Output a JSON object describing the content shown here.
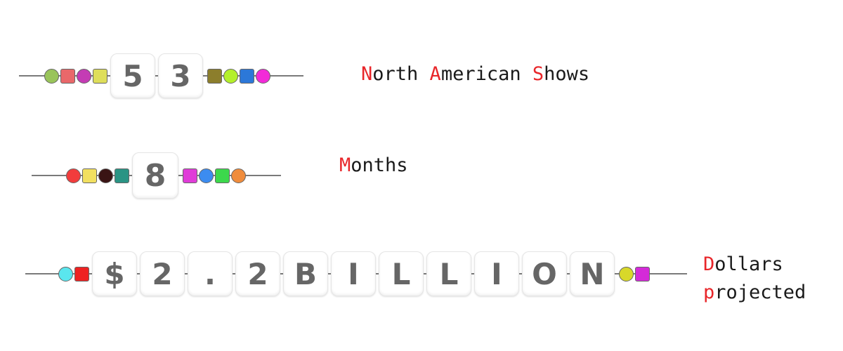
{
  "rows": [
    {
      "tiles": [
        "5",
        "3"
      ],
      "beads_left": [
        {
          "shape": "circle",
          "color": "#99c45a"
        },
        {
          "shape": "square",
          "color": "#e9686a"
        },
        {
          "shape": "circle",
          "color": "#c43cb4"
        },
        {
          "shape": "square",
          "color": "#dede5a"
        }
      ],
      "beads_right": [
        {
          "shape": "square",
          "color": "#8c7e2c"
        },
        {
          "shape": "circle",
          "color": "#b4f02a"
        },
        {
          "shape": "square",
          "color": "#2c78d8"
        },
        {
          "shape": "circle",
          "color": "#f22ad8"
        }
      ],
      "label_lines": [
        [
          {
            "text": "N",
            "highlight": true
          },
          {
            "text": "orth ",
            "highlight": false
          },
          {
            "text": "A",
            "highlight": true
          },
          {
            "text": "merican ",
            "highlight": false
          },
          {
            "text": "S",
            "highlight": true
          },
          {
            "text": "hows",
            "highlight": false
          }
        ]
      ]
    },
    {
      "tiles": [
        "8"
      ],
      "beads_left": [
        {
          "shape": "circle",
          "color": "#f23c3c"
        },
        {
          "shape": "square",
          "color": "#f2e060"
        },
        {
          "shape": "circle",
          "color": "#3a1414"
        },
        {
          "shape": "square",
          "color": "#2a9484"
        }
      ],
      "beads_right": [
        {
          "shape": "square",
          "color": "#e03cd8"
        },
        {
          "shape": "circle",
          "color": "#3c8cf0"
        },
        {
          "shape": "square",
          "color": "#3cd84c"
        },
        {
          "shape": "circle",
          "color": "#f08c3c"
        }
      ],
      "label_lines": [
        [
          {
            "text": "M",
            "highlight": true
          },
          {
            "text": "onths",
            "highlight": false
          }
        ]
      ]
    },
    {
      "tiles": [
        "$",
        "2",
        ".",
        "2",
        "B",
        "I",
        "L",
        "L",
        "I",
        "O",
        "N"
      ],
      "beads_left": [
        {
          "shape": "circle",
          "color": "#5ae6ee"
        },
        {
          "shape": "square",
          "color": "#ee2222"
        }
      ],
      "beads_right": [
        {
          "shape": "circle",
          "color": "#d8d82a"
        },
        {
          "shape": "square",
          "color": "#d42ad8"
        }
      ],
      "label_lines": [
        [
          {
            "text": "D",
            "highlight": true
          },
          {
            "text": "ollars",
            "highlight": false
          }
        ],
        [
          {
            "text": "p",
            "highlight": true
          },
          {
            "text": "rojected",
            "highlight": false
          }
        ]
      ]
    }
  ],
  "colors": {
    "highlight": "#e8262a",
    "text": "#1a1a1a",
    "tile_text": "#666666",
    "string": "#7a7a7a"
  }
}
